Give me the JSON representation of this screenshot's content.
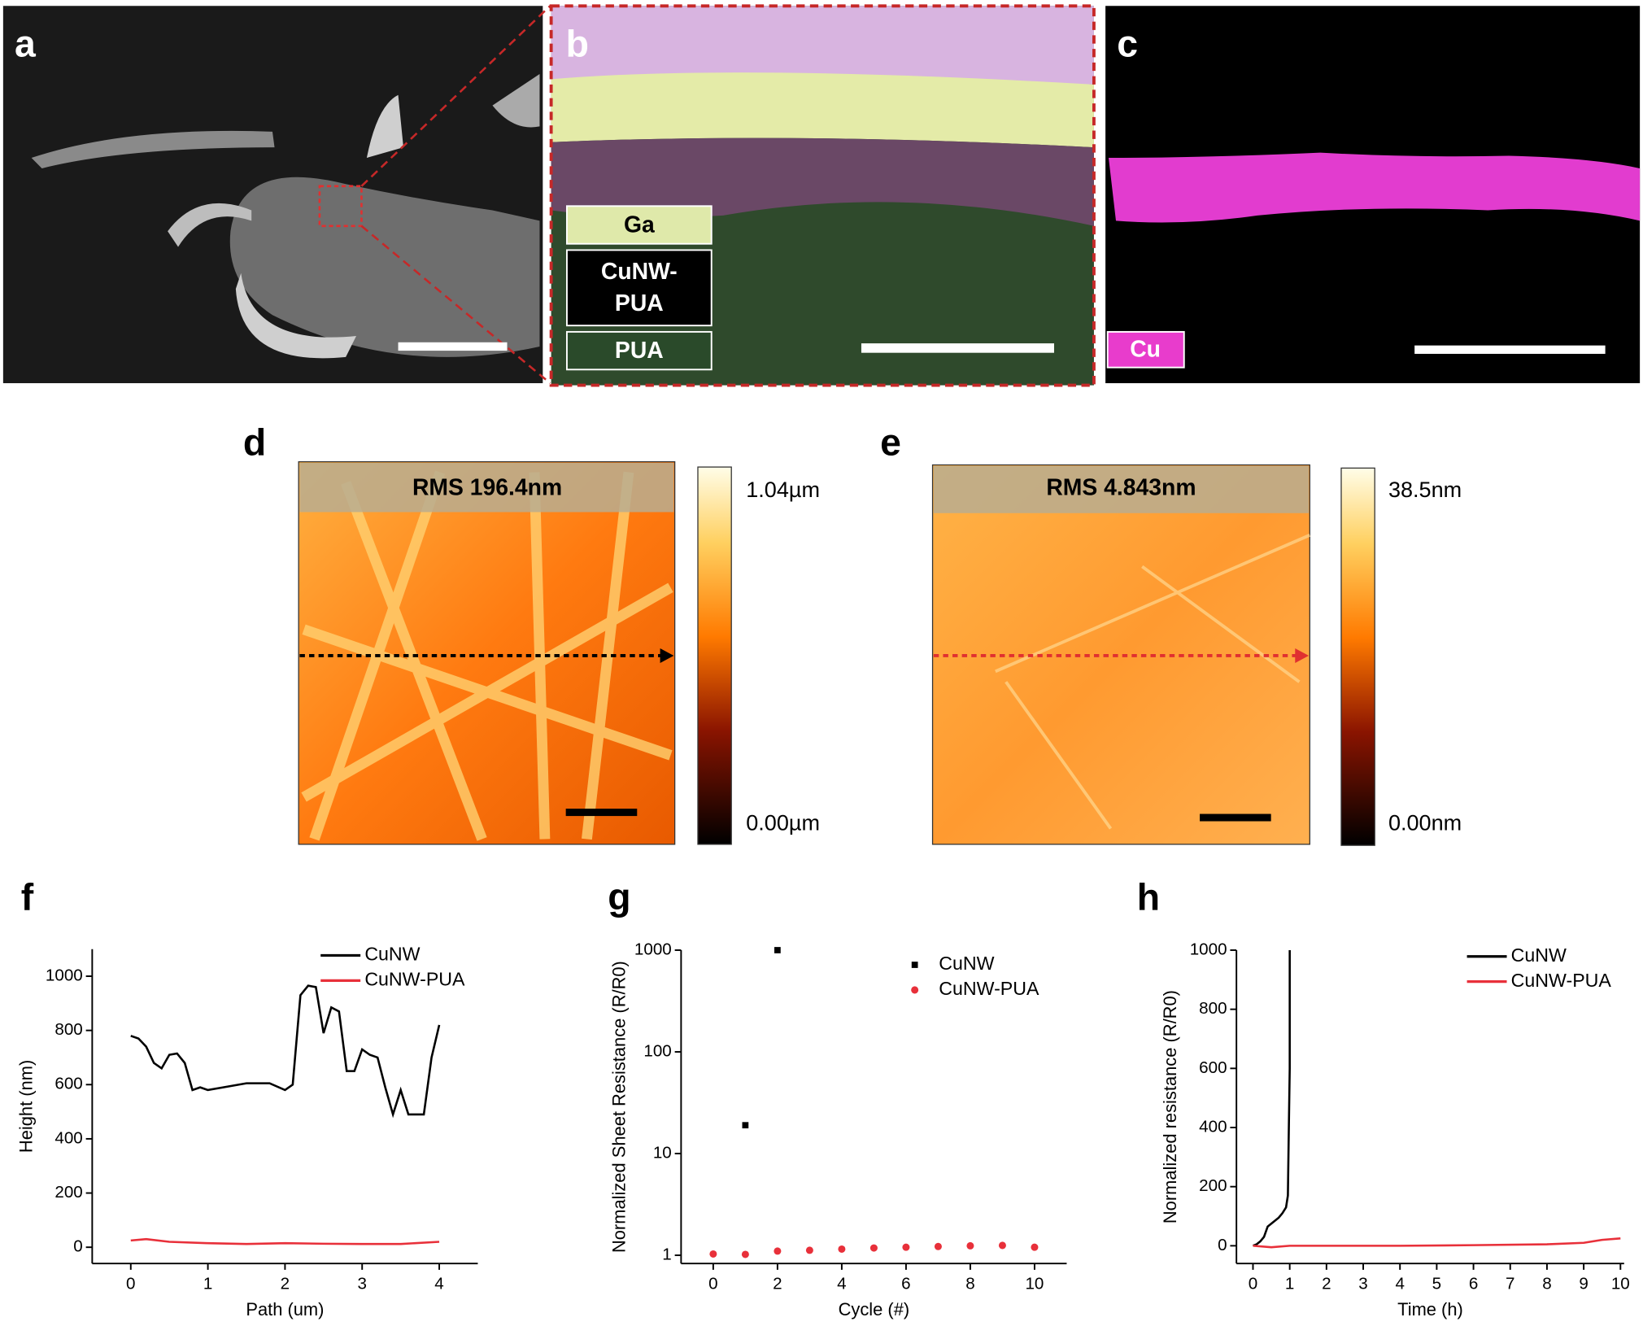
{
  "image_panels": {
    "a": {
      "label": "a"
    },
    "b": {
      "label": "b",
      "layers": [
        {
          "lines": [
            "Ga"
          ]
        },
        {
          "lines": [
            "CuNW-",
            "PUA"
          ]
        },
        {
          "lines": [
            "PUA"
          ]
        }
      ]
    },
    "c": {
      "label": "c",
      "element": "Cu"
    },
    "d": {
      "label": "d",
      "rms": "RMS 196.4nm",
      "scale_max": "1.04µm",
      "scale_min": "0.00µm"
    },
    "e": {
      "label": "e",
      "rms": "RMS 4.843nm",
      "scale_max": "38.5nm",
      "scale_min": "0.00nm"
    }
  },
  "chart_data": [
    {
      "type": "line",
      "label": "f",
      "x_label": "Path (um)",
      "y_label": "Height (nm)",
      "xlim": [
        -0.5,
        4.5
      ],
      "xticks": [
        0,
        1,
        2,
        3,
        4
      ],
      "ylim": [
        -60,
        1100
      ],
      "yticks": [
        0,
        200,
        400,
        600,
        800,
        1000
      ],
      "legend": "upper right",
      "series": [
        {
          "name": "CuNW",
          "color": "#000000",
          "x": [
            0,
            0.1,
            0.2,
            0.3,
            0.4,
            0.5,
            0.6,
            0.7,
            0.8,
            0.9,
            1.0,
            1.2,
            1.5,
            1.8,
            2.0,
            2.1,
            2.2,
            2.3,
            2.4,
            2.5,
            2.6,
            2.7,
            2.8,
            2.9,
            3.0,
            3.1,
            3.2,
            3.3,
            3.4,
            3.5,
            3.6,
            3.7,
            3.8,
            3.9,
            4.0
          ],
          "values": [
            780,
            770,
            740,
            680,
            660,
            710,
            715,
            680,
            580,
            590,
            580,
            590,
            605,
            605,
            580,
            600,
            930,
            965,
            960,
            790,
            885,
            870,
            650,
            650,
            730,
            710,
            700,
            590,
            490,
            580,
            490,
            490,
            490,
            700,
            820
          ]
        },
        {
          "name": "CuNW-PUA",
          "color": "#e8303a",
          "x": [
            0,
            0.2,
            0.5,
            1,
            1.5,
            2,
            2.5,
            3,
            3.5,
            4
          ],
          "values": [
            25,
            30,
            20,
            15,
            12,
            15,
            13,
            12,
            12,
            20
          ]
        }
      ]
    },
    {
      "type": "scatter",
      "label": "g",
      "x_label": "Cycle (#)",
      "y_label": "Normalized Sheet Resistance (R/R0)",
      "xlim": [
        -1,
        11
      ],
      "xticks": [
        0,
        2,
        4,
        6,
        8,
        10
      ],
      "ylim": [
        0.83,
        1000
      ],
      "yticks": [
        1,
        10,
        100,
        1000
      ],
      "log_y": true,
      "legend": "upper right",
      "series": [
        {
          "name": "CuNW",
          "color": "#000000",
          "marker": "square",
          "x": [
            1,
            2
          ],
          "values": [
            19,
            1000
          ]
        },
        {
          "name": "CuNW-PUA",
          "color": "#e8303a",
          "marker": "circle",
          "x": [
            0,
            1,
            2,
            3,
            4,
            5,
            6,
            7,
            8,
            9,
            10
          ],
          "values": [
            1.03,
            1.02,
            1.1,
            1.12,
            1.15,
            1.18,
            1.2,
            1.22,
            1.24,
            1.25,
            1.2
          ]
        }
      ]
    },
    {
      "type": "line",
      "label": "h",
      "x_label": "Time (h)",
      "y_label": "Normalized resistance (R/R0)",
      "xlim": [
        -0.45,
        10.1
      ],
      "xticks": [
        0,
        1,
        2,
        3,
        4,
        5,
        6,
        7,
        8,
        9,
        10
      ],
      "ylim": [
        -60,
        1000
      ],
      "yticks": [
        0,
        200,
        400,
        600,
        800,
        1000
      ],
      "legend": "upper right",
      "series": [
        {
          "name": "CuNW",
          "color": "#000000",
          "x": [
            0,
            0.1,
            0.2,
            0.3,
            0.4,
            0.5,
            0.6,
            0.7,
            0.8,
            0.9,
            0.95,
            0.97,
            1.0,
            1.0
          ],
          "values": [
            0,
            5,
            15,
            30,
            65,
            75,
            85,
            95,
            110,
            130,
            170,
            350,
            600,
            1000
          ]
        },
        {
          "name": "CuNW-PUA",
          "color": "#e8303a",
          "x": [
            0,
            0.5,
            1,
            2,
            4,
            6,
            8,
            9,
            9.5,
            10
          ],
          "values": [
            0,
            -5,
            0,
            0,
            0,
            2,
            5,
            10,
            20,
            25
          ]
        }
      ]
    }
  ]
}
